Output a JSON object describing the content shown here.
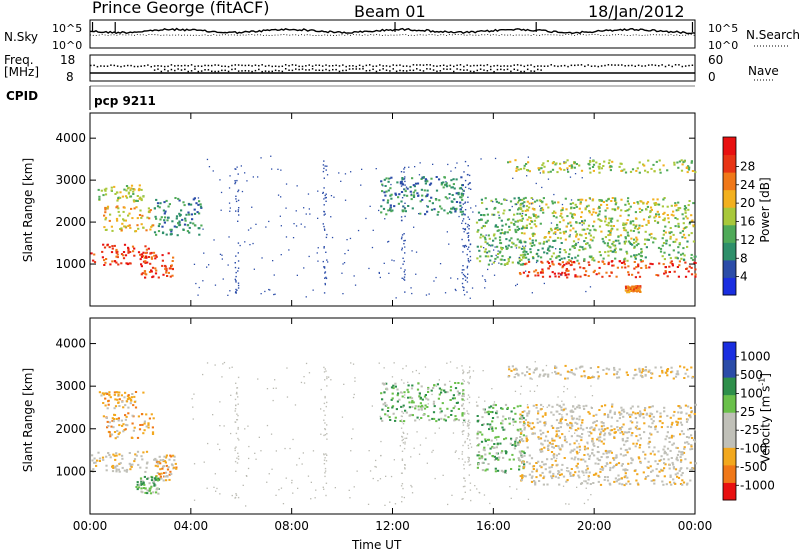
{
  "header": {
    "station": "Prince George (fitACF)",
    "beam": "Beam 01",
    "date": "18/Jan/2012"
  },
  "noise_panel": {
    "left_label": "N.Sky",
    "right_label": "N.Search",
    "left_ticks": [
      "10^5",
      "10^0"
    ],
    "right_ticks": [
      "10^5",
      "10^0"
    ]
  },
  "freq_panel": {
    "left_label": "Freq.",
    "left_unit": "[MHz]",
    "right_label": "Nave",
    "left_ticks": [
      "18",
      "8"
    ],
    "right_ticks": [
      "60",
      "0"
    ]
  },
  "cpid": {
    "label": "CPID",
    "program": "pcp 9211"
  },
  "colors": {
    "power": [
      "#1a2ee0",
      "#2b4ca8",
      "#2e8f6a",
      "#4faa58",
      "#a8c83a",
      "#f2b01e",
      "#f07818",
      "#e83414",
      "#e81010"
    ],
    "velocity": [
      "#e81010",
      "#f07818",
      "#f2a81e",
      "#c0c0b8",
      "#c0c0b8",
      "#6ac04a",
      "#2e8f4a",
      "#2b4ca8",
      "#1a2ee0"
    ]
  },
  "chart_data": [
    {
      "type": "heatmap",
      "quantity": "Power",
      "xlabel": "",
      "ylabel": "Slant Range [km]",
      "xlim_hours": [
        0,
        24
      ],
      "ylim_km": [
        0,
        4600
      ],
      "yticks": [
        "1000",
        "2000",
        "3000",
        "4000"
      ],
      "xticks": [
        "00:00",
        "04:00",
        "08:00",
        "12:00",
        "16:00",
        "20:00",
        "00:00"
      ],
      "colorbar_label": "Power [dB]",
      "colorbar_ticks": [
        "4",
        "8",
        "12",
        "16",
        "20",
        "24",
        "28"
      ],
      "regions": [
        {
          "t0": 0.0,
          "t1": 2.3,
          "r0": 1000,
          "r1": 1500,
          "level": 7
        },
        {
          "t0": 0.5,
          "t1": 2.5,
          "r0": 1800,
          "r1": 2400,
          "level": 5
        },
        {
          "t0": 0.3,
          "t1": 2.1,
          "r0": 2500,
          "r1": 2900,
          "level": 4
        },
        {
          "t0": 2.0,
          "t1": 3.3,
          "r0": 700,
          "r1": 1300,
          "level": 7
        },
        {
          "t0": 2.5,
          "t1": 4.4,
          "r0": 1700,
          "r1": 2600,
          "level": 2
        },
        {
          "t0": 11.5,
          "t1": 14.8,
          "r0": 2200,
          "r1": 3100,
          "level": 2
        },
        {
          "t0": 15.3,
          "t1": 17.2,
          "r0": 1000,
          "r1": 2600,
          "level": 3
        },
        {
          "t0": 17.0,
          "t1": 24.0,
          "r0": 700,
          "r1": 1100,
          "level": 7
        },
        {
          "t0": 17.0,
          "t1": 24.0,
          "r0": 1100,
          "r1": 1600,
          "level": 3
        },
        {
          "t0": 17.0,
          "t1": 24.0,
          "r0": 1600,
          "r1": 2600,
          "level": 4
        },
        {
          "t0": 16.5,
          "t1": 24.0,
          "r0": 3200,
          "r1": 3500,
          "level": 4
        },
        {
          "t0": 21.2,
          "t1": 21.8,
          "r0": 350,
          "r1": 500,
          "level": 6
        }
      ]
    },
    {
      "type": "heatmap",
      "quantity": "Velocity",
      "xlabel": "Time UT",
      "ylabel": "Slant Range [km]",
      "xlim_hours": [
        0,
        24
      ],
      "ylim_km": [
        0,
        4600
      ],
      "yticks": [
        "1000",
        "2000",
        "3000",
        "4000"
      ],
      "xticks": [
        "00:00",
        "04:00",
        "08:00",
        "12:00",
        "16:00",
        "20:00",
        "00:00"
      ],
      "colorbar_label": "Velocity [m s^-1]",
      "colorbar_ticks": [
        "1000",
        "500",
        "100",
        "25",
        "-25",
        "-100",
        "-500",
        "-1000"
      ],
      "regions": [
        {
          "t0": 0.0,
          "t1": 2.3,
          "r0": 1000,
          "r1": 1500,
          "level": 3
        },
        {
          "t0": 0.5,
          "t1": 2.5,
          "r0": 1800,
          "r1": 2400,
          "level": 2
        },
        {
          "t0": 0.3,
          "t1": 2.1,
          "r0": 2500,
          "r1": 2900,
          "level": 2
        },
        {
          "t0": 2.5,
          "t1": 3.4,
          "r0": 800,
          "r1": 1400,
          "level": 2
        },
        {
          "t0": 1.8,
          "t1": 2.7,
          "r0": 500,
          "r1": 900,
          "level": 5
        },
        {
          "t0": 11.5,
          "t1": 14.8,
          "r0": 2200,
          "r1": 3100,
          "level": 5
        },
        {
          "t0": 15.3,
          "t1": 17.2,
          "r0": 1000,
          "r1": 2600,
          "level": 5
        },
        {
          "t0": 17.0,
          "t1": 24.0,
          "r0": 700,
          "r1": 1300,
          "level": 3
        },
        {
          "t0": 17.0,
          "t1": 24.0,
          "r0": 1300,
          "r1": 2600,
          "level": 3
        },
        {
          "t0": 16.5,
          "t1": 24.0,
          "r0": 3200,
          "r1": 3500,
          "level": 3
        }
      ]
    }
  ]
}
